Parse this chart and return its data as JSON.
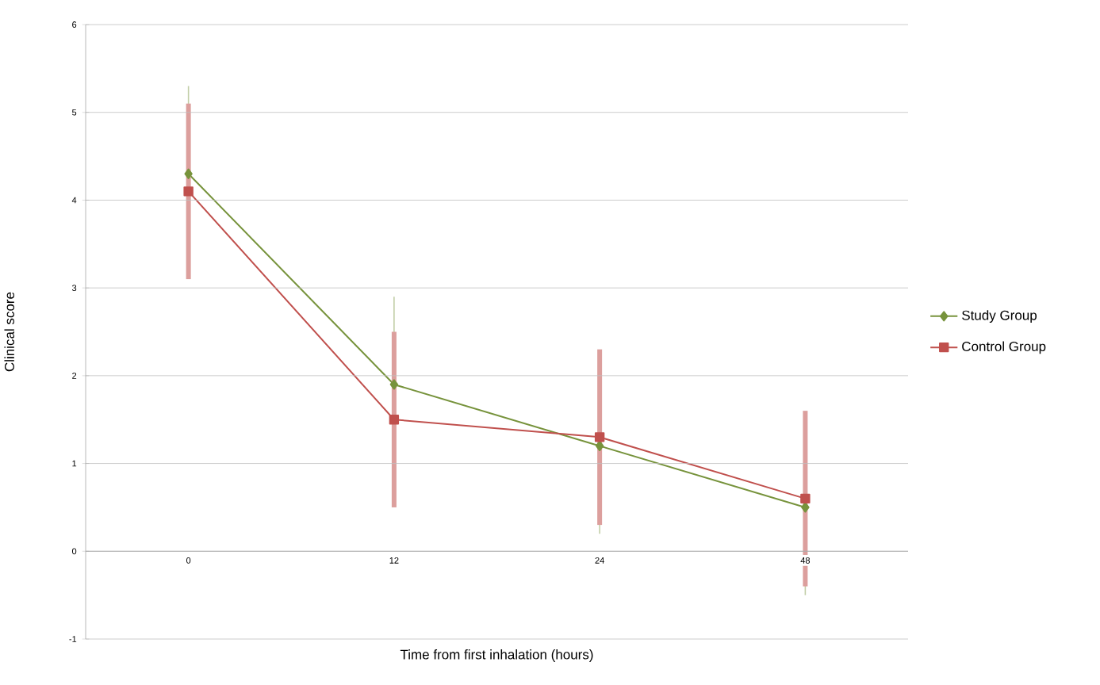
{
  "chart_data": {
    "type": "line",
    "xlabel": "Time from first inhalation (hours)",
    "ylabel": "Clinical score",
    "categories": [
      "0",
      "12",
      "24",
      "48"
    ],
    "series": [
      {
        "name": "Study Group",
        "color": "#77933c",
        "values": [
          4.3,
          1.9,
          1.2,
          0.5
        ],
        "errors": [
          1.0,
          1.0,
          1.0,
          1.0
        ],
        "marker": "diamond"
      },
      {
        "name": "Control Group",
        "color": "#c0504d",
        "values": [
          4.1,
          1.5,
          1.3,
          0.6
        ],
        "errors": [
          1.0,
          1.0,
          1.0,
          1.0
        ],
        "marker": "square"
      }
    ],
    "ylim": [
      -1,
      6
    ],
    "yticks": [
      -1,
      0,
      1,
      2,
      3,
      4,
      5,
      6
    ],
    "grid": "y",
    "legend": "right",
    "line_style": "solid"
  }
}
